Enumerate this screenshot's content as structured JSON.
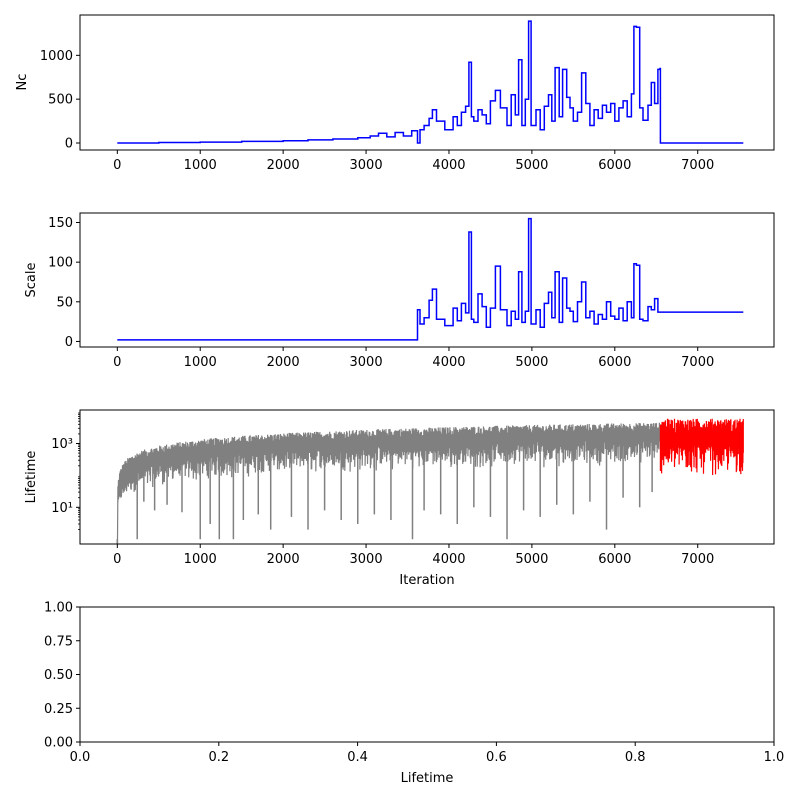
{
  "chart_data": [
    {
      "type": "line",
      "ylabel": "Nc",
      "xlabel": "",
      "xlim": [
        -450,
        7920
      ],
      "ylim": [
        -80,
        1460
      ],
      "xticks": [
        0,
        1000,
        2000,
        3000,
        4000,
        5000,
        6000,
        7000
      ],
      "xtick_labels": [
        "0",
        "1000",
        "2000",
        "3000",
        "4000",
        "5000",
        "6000",
        "7000"
      ],
      "yticks": [
        0,
        500,
        1000
      ],
      "ytick_labels": [
        "0",
        "500",
        "1000"
      ],
      "series": [
        {
          "color": "#0000ff",
          "step": true,
          "x": [
            0,
            500,
            1000,
            1500,
            2000,
            2300,
            2600,
            2900,
            3050,
            3150,
            3250,
            3350,
            3450,
            3550,
            3620,
            3650,
            3700,
            3760,
            3800,
            3850,
            3950,
            4050,
            4100,
            4150,
            4200,
            4240,
            4270,
            4300,
            4350,
            4400,
            4450,
            4500,
            4560,
            4620,
            4700,
            4750,
            4800,
            4840,
            4880,
            4920,
            4960,
            4990,
            5050,
            5100,
            5150,
            5200,
            5240,
            5280,
            5330,
            5370,
            5420,
            5460,
            5500,
            5550,
            5600,
            5650,
            5700,
            5750,
            5800,
            5850,
            5900,
            5950,
            6000,
            6050,
            6100,
            6150,
            6200,
            6230,
            6260,
            6300,
            6340,
            6400,
            6440,
            6480,
            6520,
            6545,
            6550,
            7550
          ],
          "y": [
            0,
            5,
            10,
            18,
            25,
            35,
            45,
            60,
            80,
            110,
            70,
            120,
            80,
            140,
            0,
            150,
            200,
            280,
            380,
            250,
            150,
            300,
            200,
            350,
            420,
            920,
            300,
            250,
            380,
            320,
            220,
            480,
            600,
            400,
            200,
            550,
            320,
            950,
            200,
            500,
            1390,
            200,
            380,
            150,
            420,
            550,
            250,
            860,
            300,
            840,
            520,
            400,
            250,
            350,
            800,
            450,
            200,
            380,
            280,
            430,
            350,
            450,
            250,
            400,
            480,
            300,
            560,
            1330,
            1320,
            400,
            260,
            430,
            690,
            450,
            840,
            850,
            0,
            0
          ]
        }
      ]
    },
    {
      "type": "line",
      "ylabel": "Scale",
      "xlabel": "",
      "xlim": [
        -450,
        7920
      ],
      "ylim": [
        -7,
        162
      ],
      "xticks": [
        0,
        1000,
        2000,
        3000,
        4000,
        5000,
        6000,
        7000
      ],
      "xtick_labels": [
        "0",
        "1000",
        "2000",
        "3000",
        "4000",
        "5000",
        "6000",
        "7000"
      ],
      "yticks": [
        0,
        50,
        100,
        150
      ],
      "ytick_labels": [
        "0",
        "50",
        "100",
        "150"
      ],
      "series": [
        {
          "color": "#0000ff",
          "step": true,
          "x": [
            0,
            3620,
            3650,
            3700,
            3760,
            3800,
            3850,
            3950,
            4050,
            4100,
            4150,
            4200,
            4240,
            4270,
            4300,
            4350,
            4400,
            4450,
            4500,
            4560,
            4620,
            4700,
            4750,
            4800,
            4840,
            4880,
            4920,
            4960,
            4990,
            5050,
            5100,
            5150,
            5200,
            5240,
            5280,
            5330,
            5370,
            5420,
            5460,
            5500,
            5550,
            5600,
            5650,
            5700,
            5750,
            5800,
            5850,
            5900,
            5950,
            6000,
            6050,
            6100,
            6150,
            6200,
            6230,
            6260,
            6300,
            6340,
            6400,
            6440,
            6480,
            6520,
            6545,
            7550
          ],
          "y": [
            2,
            40,
            22,
            30,
            52,
            66,
            28,
            20,
            42,
            26,
            48,
            36,
            138,
            28,
            24,
            60,
            44,
            18,
            42,
            95,
            40,
            20,
            38,
            28,
            88,
            24,
            38,
            155,
            22,
            40,
            18,
            48,
            62,
            30,
            88,
            24,
            80,
            42,
            38,
            25,
            50,
            75,
            30,
            38,
            22,
            34,
            28,
            50,
            32,
            28,
            42,
            26,
            50,
            30,
            98,
            96,
            28,
            26,
            44,
            40,
            54,
            37,
            37,
            37
          ]
        }
      ]
    },
    {
      "type": "line",
      "xlabel": "Iteration",
      "ylabel": "Lifetime",
      "xlim": [
        -450,
        7920
      ],
      "yscale": "log",
      "ylim_log10": [
        -0.15,
        4.05
      ],
      "xticks": [
        0,
        1000,
        2000,
        3000,
        4000,
        5000,
        6000,
        7000
      ],
      "xtick_labels": [
        "0",
        "1000",
        "2000",
        "3000",
        "4000",
        "5000",
        "6000",
        "7000"
      ],
      "yticks": [
        10,
        1000
      ],
      "ytick_labels": [
        "10¹",
        "10³"
      ],
      "series": [
        {
          "color": "#808080",
          "x_start": 0,
          "x_end": 6550,
          "upper_envelope": "grows from 1 at iteration 0 to about 5000 near iteration 6500",
          "dips": [
            {
              "x": 0,
              "y": 1
            },
            {
              "x": 240,
              "y": 1
            },
            {
              "x": 320,
              "y": 15
            },
            {
              "x": 450,
              "y": 8
            },
            {
              "x": 600,
              "y": 12
            },
            {
              "x": 780,
              "y": 7
            },
            {
              "x": 1000,
              "y": 1
            },
            {
              "x": 1120,
              "y": 3
            },
            {
              "x": 1230,
              "y": 1
            },
            {
              "x": 1400,
              "y": 1
            },
            {
              "x": 1520,
              "y": 4
            },
            {
              "x": 1700,
              "y": 6
            },
            {
              "x": 1850,
              "y": 2
            },
            {
              "x": 2100,
              "y": 5
            },
            {
              "x": 2300,
              "y": 2
            },
            {
              "x": 2500,
              "y": 8
            },
            {
              "x": 2700,
              "y": 4
            },
            {
              "x": 2900,
              "y": 3
            },
            {
              "x": 3100,
              "y": 6
            },
            {
              "x": 3300,
              "y": 4
            },
            {
              "x": 3560,
              "y": 1
            },
            {
              "x": 3700,
              "y": 8
            },
            {
              "x": 3900,
              "y": 6
            },
            {
              "x": 4100,
              "y": 3
            },
            {
              "x": 4300,
              "y": 10
            },
            {
              "x": 4500,
              "y": 5
            },
            {
              "x": 4700,
              "y": 1
            },
            {
              "x": 4900,
              "y": 8
            },
            {
              "x": 5100,
              "y": 5
            },
            {
              "x": 5300,
              "y": 12
            },
            {
              "x": 5500,
              "y": 6
            },
            {
              "x": 5700,
              "y": 15
            },
            {
              "x": 5900,
              "y": 2
            },
            {
              "x": 6100,
              "y": 20
            },
            {
              "x": 6300,
              "y": 10
            },
            {
              "x": 6450,
              "y": 30
            }
          ]
        },
        {
          "color": "#ff0000",
          "x_start": 6550,
          "x_end": 7550,
          "range": "oscillates between about 100 and 6000"
        }
      ]
    },
    {
      "type": "line",
      "xlabel": "Lifetime",
      "ylabel": "",
      "xlim": [
        0,
        1
      ],
      "ylim": [
        0,
        1
      ],
      "xticks": [
        0,
        0.2,
        0.4,
        0.6,
        0.8,
        1.0
      ],
      "xtick_labels": [
        "0.0",
        "0.2",
        "0.4",
        "0.6",
        "0.8",
        "1.0"
      ],
      "yticks": [
        0,
        0.25,
        0.5,
        0.75,
        1.0
      ],
      "ytick_labels": [
        "0.00",
        "0.25",
        "0.50",
        "0.75",
        "1.00"
      ],
      "series": []
    }
  ]
}
